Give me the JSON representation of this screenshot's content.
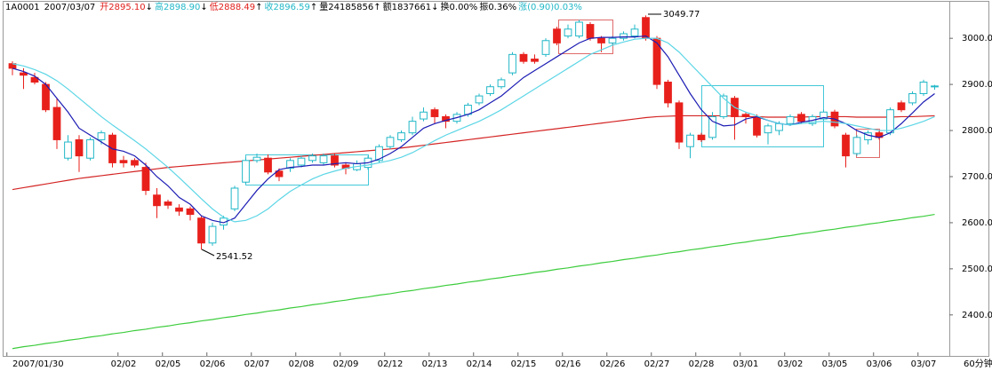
{
  "header": {
    "code": "1A0001",
    "date": "2007/03/07",
    "fields": [
      {
        "label": "开",
        "value": "2895.10",
        "arrow": "↓",
        "color": "#e0201c"
      },
      {
        "label": "高",
        "value": "2898.90",
        "arrow": "↓",
        "color": "#22b8c8"
      },
      {
        "label": "低",
        "value": "2888.49",
        "arrow": "↑",
        "color": "#e0201c"
      },
      {
        "label": "收",
        "value": "2896.59",
        "arrow": "↑",
        "color": "#22b8c8"
      },
      {
        "label": "量",
        "value": "24185856",
        "arrow": "↑",
        "color": "#000000"
      },
      {
        "label": "额",
        "value": "1837661",
        "arrow": "↓",
        "color": "#000000"
      },
      {
        "label": "换",
        "value": "0.00%",
        "arrow": null,
        "color": "#000000"
      },
      {
        "label": "振",
        "value": "0.36%",
        "arrow": null,
        "color": "#000000"
      },
      {
        "label": "涨",
        "value": "(0.90)0.03%",
        "arrow": null,
        "color": "#22b8c8"
      }
    ]
  },
  "chart_data": {
    "type": "candlestick",
    "period": "60分钟",
    "categories": [
      "2007/01/30",
      null,
      null,
      null,
      null,
      null,
      null,
      null,
      null,
      null,
      "02/02",
      null,
      null,
      null,
      "02/05",
      null,
      null,
      null,
      "02/06",
      null,
      null,
      null,
      "02/07",
      null,
      null,
      null,
      "02/08",
      null,
      null,
      null,
      "02/09",
      null,
      null,
      null,
      "02/12",
      null,
      null,
      null,
      "02/13",
      null,
      null,
      null,
      "02/14",
      null,
      null,
      null,
      "02/15",
      null,
      null,
      null,
      "02/16",
      null,
      null,
      null,
      "02/26",
      null,
      null,
      null,
      "02/27",
      null,
      null,
      null,
      "02/28",
      null,
      null,
      null,
      "03/01",
      null,
      null,
      null,
      "03/02",
      null,
      null,
      null,
      "03/05",
      null,
      null,
      null,
      "03/06",
      null,
      null,
      null,
      "03/07",
      null
    ],
    "open": [
      2945,
      2925,
      2915,
      2900,
      2850,
      2740,
      2780,
      2740,
      2780,
      2790,
      2735,
      2735,
      2720,
      2660,
      2645,
      2632,
      2630,
      2610,
      2556,
      2595,
      2630,
      2688,
      2735,
      2740,
      2712,
      2718,
      2725,
      2735,
      2730,
      2745,
      2725,
      2715,
      2720,
      2735,
      2765,
      2780,
      2795,
      2825,
      2845,
      2830,
      2820,
      2835,
      2860,
      2880,
      2895,
      2925,
      2965,
      2955,
      2965,
      3020,
      3005,
      3005,
      3030,
      3000,
      2990,
      3000,
      3005,
      3045,
      3000,
      2905,
      2860,
      2765,
      2790,
      2785,
      2830,
      2870,
      2835,
      2830,
      2795,
      2800,
      2815,
      2835,
      2815,
      2825,
      2840,
      2790,
      2750,
      2780,
      2795,
      2795,
      2860,
      2860,
      2880,
      2895.1
    ],
    "high": [
      2950,
      2935,
      2925,
      2905,
      2870,
      2790,
      2790,
      2785,
      2800,
      2795,
      2745,
      2740,
      2730,
      2675,
      2650,
      2640,
      2635,
      2615,
      2600,
      2615,
      2680,
      2742,
      2750,
      2748,
      2718,
      2740,
      2745,
      2750,
      2750,
      2750,
      2730,
      2735,
      2745,
      2770,
      2790,
      2800,
      2830,
      2850,
      2850,
      2835,
      2840,
      2860,
      2880,
      2900,
      2915,
      2970,
      2970,
      2965,
      3000,
      3025,
      3030,
      3040,
      3035,
      3005,
      3005,
      3015,
      3030,
      3049.77,
      3005,
      2910,
      2865,
      2795,
      2795,
      2840,
      2880,
      2875,
      2840,
      2835,
      2815,
      2820,
      2835,
      2840,
      2835,
      2845,
      2845,
      2795,
      2790,
      2800,
      2800,
      2850,
      2865,
      2885,
      2910,
      2898.9
    ],
    "low": [
      2920,
      2890,
      2900,
      2840,
      2760,
      2735,
      2710,
      2735,
      2770,
      2720,
      2720,
      2720,
      2660,
      2610,
      2630,
      2615,
      2605,
      2541.52,
      2550,
      2585,
      2625,
      2684,
      2730,
      2705,
      2690,
      2710,
      2720,
      2730,
      2725,
      2720,
      2705,
      2712,
      2715,
      2730,
      2760,
      2775,
      2790,
      2820,
      2815,
      2805,
      2815,
      2830,
      2855,
      2875,
      2890,
      2920,
      2945,
      2945,
      2960,
      2985,
      3000,
      3000,
      2995,
      2970,
      2985,
      2995,
      3000,
      2995,
      2890,
      2850,
      2760,
      2740,
      2775,
      2780,
      2825,
      2780,
      2815,
      2785,
      2770,
      2790,
      2810,
      2815,
      2810,
      2820,
      2805,
      2720,
      2745,
      2770,
      2780,
      2790,
      2840,
      2855,
      2875,
      2888.49
    ],
    "close": [
      2935,
      2920,
      2905,
      2845,
      2780,
      2775,
      2745,
      2780,
      2795,
      2730,
      2730,
      2725,
      2670,
      2637,
      2638,
      2625,
      2618,
      2556,
      2592,
      2610,
      2675,
      2735,
      2742,
      2710,
      2700,
      2735,
      2740,
      2745,
      2745,
      2725,
      2718,
      2728,
      2740,
      2765,
      2785,
      2795,
      2820,
      2840,
      2830,
      2820,
      2835,
      2855,
      2875,
      2895,
      2910,
      2965,
      2950,
      2950,
      2995,
      2990,
      3020,
      3035,
      3000,
      2990,
      3000,
      3010,
      3020,
      3000,
      2900,
      2860,
      2775,
      2790,
      2780,
      2830,
      2875,
      2830,
      2830,
      2790,
      2810,
      2815,
      2830,
      2820,
      2830,
      2840,
      2810,
      2745,
      2785,
      2795,
      2785,
      2845,
      2845,
      2880,
      2905,
      2896.59
    ],
    "up_color": "#22b8c8",
    "down_color": "#e8201c",
    "lines": [
      {
        "color": "#1c1cb4",
        "values": [
          2935,
          2928,
          2918,
          2900,
          2870,
          2840,
          2805,
          2790,
          2775,
          2760,
          2755,
          2745,
          2725,
          2700,
          2680,
          2655,
          2640,
          2615,
          2605,
          2600,
          2610,
          2640,
          2670,
          2695,
          2715,
          2720,
          2722,
          2725,
          2725,
          2728,
          2730,
          2728,
          2730,
          2738,
          2750,
          2765,
          2785,
          2805,
          2815,
          2822,
          2828,
          2835,
          2845,
          2860,
          2875,
          2895,
          2915,
          2930,
          2945,
          2960,
          2975,
          2990,
          3000,
          3002,
          3002,
          3003,
          3003,
          3005,
          2990,
          2960,
          2920,
          2880,
          2845,
          2820,
          2810,
          2812,
          2825,
          2830,
          2822,
          2815,
          2812,
          2818,
          2822,
          2828,
          2825,
          2815,
          2800,
          2790,
          2785,
          2795,
          2815,
          2838,
          2862,
          2880
        ]
      },
      {
        "color": "#5cd6e6",
        "values": [
          2945,
          2940,
          2932,
          2922,
          2908,
          2890,
          2870,
          2850,
          2830,
          2812,
          2795,
          2778,
          2760,
          2740,
          2720,
          2698,
          2675,
          2652,
          2630,
          2612,
          2602,
          2605,
          2615,
          2630,
          2650,
          2668,
          2682,
          2695,
          2705,
          2712,
          2718,
          2722,
          2725,
          2730,
          2735,
          2742,
          2752,
          2765,
          2778,
          2790,
          2800,
          2810,
          2820,
          2832,
          2845,
          2860,
          2875,
          2890,
          2905,
          2920,
          2935,
          2950,
          2965,
          2975,
          2985,
          2992,
          2998,
          3000,
          3000,
          2990,
          2970,
          2945,
          2920,
          2895,
          2870,
          2850,
          2840,
          2832,
          2822,
          2815,
          2812,
          2815,
          2818,
          2820,
          2818,
          2815,
          2810,
          2805,
          2800,
          2800,
          2805,
          2812,
          2820,
          2830
        ]
      },
      {
        "color": "#d42424",
        "values": [
          2672,
          2676,
          2680,
          2684,
          2688,
          2692,
          2696,
          2699,
          2702,
          2705,
          2708,
          2711,
          2714,
          2717,
          2720,
          2722,
          2724,
          2726,
          2728,
          2730,
          2732,
          2734,
          2736,
          2738,
          2740,
          2742,
          2744,
          2746,
          2748,
          2750,
          2752,
          2754,
          2756,
          2758,
          2760,
          2762,
          2765,
          2768,
          2771,
          2774,
          2777,
          2780,
          2783,
          2786,
          2789,
          2792,
          2795,
          2798,
          2801,
          2804,
          2807,
          2810,
          2813,
          2816,
          2819,
          2822,
          2825,
          2828,
          2830,
          2831,
          2832,
          2832,
          2832,
          2832,
          2832,
          2831,
          2830,
          2830,
          2829,
          2829,
          2829,
          2829,
          2830,
          2830,
          2830,
          2830,
          2829,
          2829,
          2829,
          2829,
          2830,
          2830,
          2831,
          2832
        ]
      },
      {
        "color": "#3ccc3c",
        "values": [
          2327,
          2331,
          2334,
          2338,
          2341,
          2345,
          2348,
          2352,
          2355,
          2359,
          2362,
          2366,
          2369,
          2373,
          2376,
          2380,
          2383,
          2387,
          2390,
          2394,
          2397,
          2401,
          2404,
          2408,
          2411,
          2415,
          2418,
          2422,
          2425,
          2429,
          2432,
          2436,
          2439,
          2443,
          2446,
          2450,
          2453,
          2457,
          2460,
          2464,
          2467,
          2471,
          2474,
          2478,
          2481,
          2485,
          2488,
          2492,
          2495,
          2499,
          2502,
          2506,
          2509,
          2513,
          2516,
          2520,
          2523,
          2527,
          2530,
          2534,
          2537,
          2541,
          2544,
          2548,
          2551,
          2555,
          2558,
          2562,
          2565,
          2569,
          2572,
          2576,
          2579,
          2583,
          2586,
          2590,
          2593,
          2597,
          2600,
          2604,
          2607,
          2611,
          2614,
          2618
        ]
      }
    ],
    "ylim": [
      2313,
      3060
    ],
    "yticks": [
      {
        "value": 2400,
        "label": "2400.0"
      },
      {
        "value": 2500,
        "label": "2500.0"
      },
      {
        "value": 2600,
        "label": "2600.0"
      },
      {
        "value": 2700,
        "label": "2700.0"
      },
      {
        "value": 2800,
        "label": "2800.0"
      },
      {
        "value": 2900,
        "label": "2900.0"
      },
      {
        "value": 3000,
        "label": "3000.0"
      }
    ]
  }
}
